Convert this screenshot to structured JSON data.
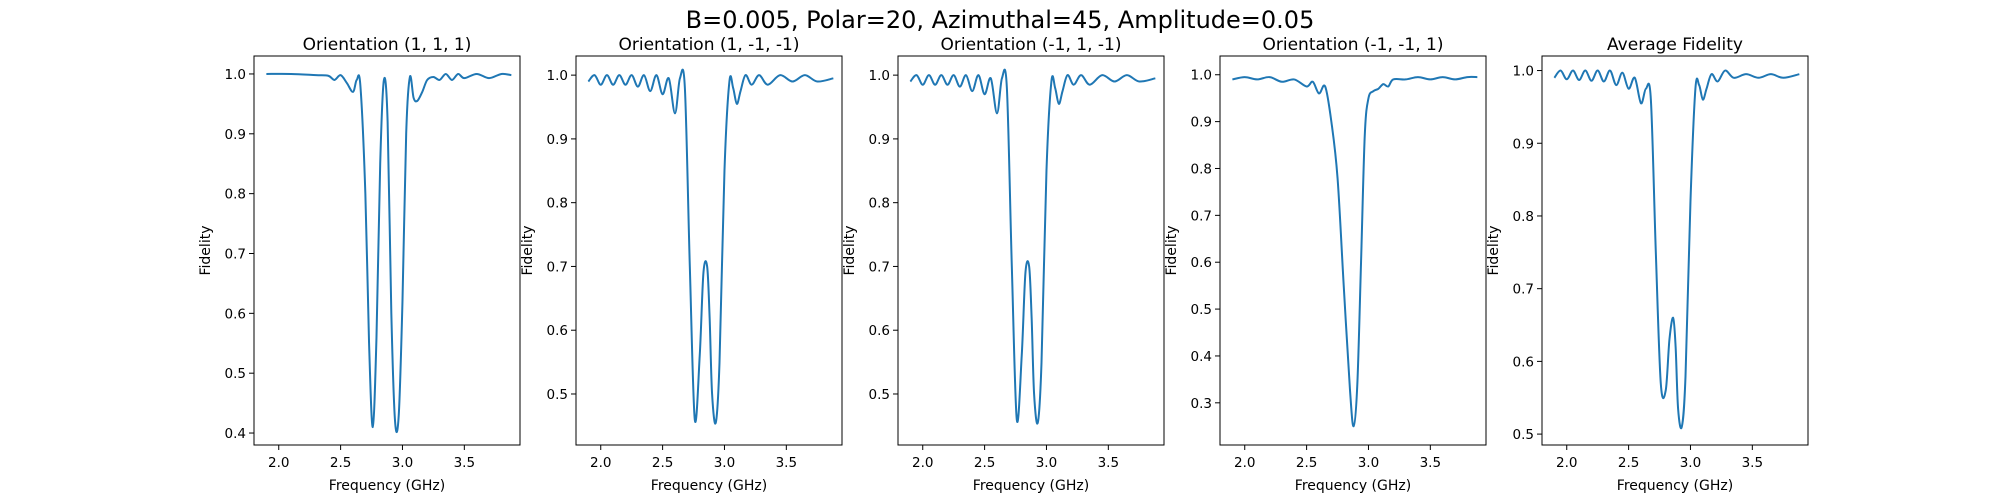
{
  "suptitle": "B=0.005, Polar=20, Azimuthal=45, Amplitude=0.05",
  "chart_data": [
    {
      "type": "line",
      "title": "Orientation (1, 1, 1)",
      "xlabel": "Frequency (GHz)",
      "ylabel": "Fidelity",
      "xlim": [
        1.8,
        3.95
      ],
      "ylim": [
        0.38,
        1.03
      ],
      "xticks": [
        2.0,
        2.5,
        3.0,
        3.5
      ],
      "xtick_labels": [
        "2.0",
        "2.5",
        "3.0",
        "3.5"
      ],
      "yticks": [
        0.4,
        0.5,
        0.6,
        0.7,
        0.8,
        0.9,
        1.0
      ],
      "ytick_labels": [
        "0.4",
        "0.5",
        "0.6",
        "0.7",
        "0.8",
        "0.9",
        "1.0"
      ],
      "series": [
        {
          "color": "#1f77b4",
          "x": [
            1.9,
            2.1,
            2.3,
            2.4,
            2.45,
            2.5,
            2.55,
            2.6,
            2.63,
            2.66,
            2.7,
            2.73,
            2.76,
            2.79,
            2.82,
            2.85,
            2.88,
            2.91,
            2.94,
            2.97,
            3.0,
            3.03,
            3.06,
            3.09,
            3.12,
            3.16,
            3.2,
            3.25,
            3.3,
            3.35,
            3.4,
            3.45,
            3.5,
            3.6,
            3.7,
            3.8,
            3.88
          ],
          "y": [
            1.0,
            1.0,
            0.998,
            0.997,
            0.99,
            0.998,
            0.985,
            0.97,
            0.99,
            0.98,
            0.8,
            0.55,
            0.41,
            0.56,
            0.85,
            0.99,
            0.92,
            0.6,
            0.42,
            0.43,
            0.62,
            0.9,
            0.995,
            0.96,
            0.955,
            0.97,
            0.99,
            0.995,
            0.99,
            1.0,
            0.99,
            1.0,
            0.993,
            1.0,
            0.993,
            1.0,
            0.998
          ]
        }
      ]
    },
    {
      "type": "line",
      "title": "Orientation (1, -1, -1)",
      "xlabel": "Frequency (GHz)",
      "ylabel": "Fidelity",
      "xlim": [
        1.8,
        3.95
      ],
      "ylim": [
        0.42,
        1.03
      ],
      "xticks": [
        2.0,
        2.5,
        3.0,
        3.5
      ],
      "xtick_labels": [
        "2.0",
        "2.5",
        "3.0",
        "3.5"
      ],
      "yticks": [
        0.5,
        0.6,
        0.7,
        0.8,
        0.9,
        1.0
      ],
      "ytick_labels": [
        "0.5",
        "0.6",
        "0.7",
        "0.8",
        "0.9",
        "1.0"
      ],
      "series": [
        {
          "color": "#1f77b4",
          "x": [
            1.9,
            1.95,
            2.0,
            2.05,
            2.1,
            2.15,
            2.2,
            2.25,
            2.3,
            2.35,
            2.4,
            2.45,
            2.5,
            2.55,
            2.6,
            2.64,
            2.68,
            2.72,
            2.76,
            2.8,
            2.83,
            2.86,
            2.88,
            2.9,
            2.93,
            2.96,
            3.0,
            3.04,
            3.07,
            3.1,
            3.13,
            3.17,
            3.22,
            3.28,
            3.35,
            3.45,
            3.55,
            3.65,
            3.75,
            3.88
          ],
          "y": [
            0.99,
            1.0,
            0.985,
            1.0,
            0.985,
            1.0,
            0.985,
            1.0,
            0.982,
            1.0,
            0.975,
            1.0,
            0.97,
            0.995,
            0.94,
            0.995,
            0.98,
            0.7,
            0.46,
            0.56,
            0.69,
            0.7,
            0.62,
            0.5,
            0.455,
            0.55,
            0.85,
            0.99,
            0.98,
            0.955,
            0.975,
            1.0,
            0.985,
            1.0,
            0.985,
            1.0,
            0.99,
            1.0,
            0.99,
            0.995
          ]
        }
      ]
    },
    {
      "type": "line",
      "title": "Orientation (-1, 1, -1)",
      "xlabel": "Frequency (GHz)",
      "ylabel": "Fidelity",
      "xlim": [
        1.8,
        3.95
      ],
      "ylim": [
        0.42,
        1.03
      ],
      "xticks": [
        2.0,
        2.5,
        3.0,
        3.5
      ],
      "xtick_labels": [
        "2.0",
        "2.5",
        "3.0",
        "3.5"
      ],
      "yticks": [
        0.5,
        0.6,
        0.7,
        0.8,
        0.9,
        1.0
      ],
      "ytick_labels": [
        "0.5",
        "0.6",
        "0.7",
        "0.8",
        "0.9",
        "1.0"
      ],
      "series": [
        {
          "color": "#1f77b4",
          "x": [
            1.9,
            1.95,
            2.0,
            2.05,
            2.1,
            2.15,
            2.2,
            2.25,
            2.3,
            2.35,
            2.4,
            2.45,
            2.5,
            2.55,
            2.6,
            2.64,
            2.68,
            2.72,
            2.76,
            2.8,
            2.83,
            2.86,
            2.88,
            2.9,
            2.93,
            2.96,
            3.0,
            3.04,
            3.07,
            3.1,
            3.13,
            3.17,
            3.22,
            3.28,
            3.35,
            3.45,
            3.55,
            3.65,
            3.75,
            3.88
          ],
          "y": [
            0.99,
            1.0,
            0.985,
            1.0,
            0.985,
            1.0,
            0.985,
            1.0,
            0.982,
            1.0,
            0.975,
            1.0,
            0.97,
            0.995,
            0.94,
            0.995,
            0.98,
            0.7,
            0.46,
            0.56,
            0.69,
            0.7,
            0.62,
            0.5,
            0.455,
            0.55,
            0.85,
            0.99,
            0.98,
            0.955,
            0.975,
            1.0,
            0.985,
            1.0,
            0.985,
            1.0,
            0.99,
            1.0,
            0.99,
            0.995
          ]
        }
      ]
    },
    {
      "type": "line",
      "title": "Orientation (-1, -1, 1)",
      "xlabel": "Frequency (GHz)",
      "ylabel": "Fidelity",
      "xlim": [
        1.8,
        3.95
      ],
      "ylim": [
        0.21,
        1.04
      ],
      "xticks": [
        2.0,
        2.5,
        3.0,
        3.5
      ],
      "xtick_labels": [
        "2.0",
        "2.5",
        "3.0",
        "3.5"
      ],
      "yticks": [
        0.3,
        0.4,
        0.5,
        0.6,
        0.7,
        0.8,
        0.9,
        1.0
      ],
      "ytick_labels": [
        "0.3",
        "0.4",
        "0.5",
        "0.6",
        "0.7",
        "0.8",
        "0.9",
        "1.0"
      ],
      "series": [
        {
          "color": "#1f77b4",
          "x": [
            1.9,
            2.0,
            2.1,
            2.2,
            2.3,
            2.4,
            2.5,
            2.55,
            2.6,
            2.65,
            2.7,
            2.75,
            2.8,
            2.85,
            2.88,
            2.91,
            2.94,
            2.97,
            3.0,
            3.04,
            3.08,
            3.12,
            3.16,
            3.2,
            3.3,
            3.4,
            3.5,
            3.6,
            3.7,
            3.8,
            3.88
          ],
          "y": [
            0.99,
            0.995,
            0.99,
            0.995,
            0.985,
            0.99,
            0.975,
            0.985,
            0.96,
            0.975,
            0.9,
            0.78,
            0.55,
            0.33,
            0.25,
            0.34,
            0.6,
            0.87,
            0.95,
            0.965,
            0.97,
            0.98,
            0.975,
            0.99,
            0.99,
            0.995,
            0.99,
            0.995,
            0.99,
            0.995,
            0.995
          ]
        }
      ]
    },
    {
      "type": "line",
      "title": "Average Fidelity",
      "xlabel": "Frequency (GHz)",
      "ylabel": "Fidelity",
      "xlim": [
        1.8,
        3.95
      ],
      "ylim": [
        0.485,
        1.02
      ],
      "xticks": [
        2.0,
        2.5,
        3.0,
        3.5
      ],
      "xtick_labels": [
        "2.0",
        "2.5",
        "3.0",
        "3.5"
      ],
      "yticks": [
        0.5,
        0.6,
        0.7,
        0.8,
        0.9,
        1.0
      ],
      "ytick_labels": [
        "0.5",
        "0.6",
        "0.7",
        "0.8",
        "0.9",
        "1.0"
      ],
      "series": [
        {
          "color": "#1f77b4",
          "x": [
            1.9,
            1.95,
            2.0,
            2.05,
            2.1,
            2.15,
            2.2,
            2.25,
            2.3,
            2.35,
            2.4,
            2.45,
            2.5,
            2.55,
            2.6,
            2.64,
            2.68,
            2.72,
            2.76,
            2.8,
            2.83,
            2.86,
            2.88,
            2.9,
            2.93,
            2.96,
            3.0,
            3.04,
            3.07,
            3.1,
            3.13,
            3.17,
            3.22,
            3.28,
            3.35,
            3.45,
            3.55,
            3.65,
            3.75,
            3.88
          ],
          "y": [
            0.99,
            1.0,
            0.988,
            1.0,
            0.987,
            1.0,
            0.986,
            1.0,
            0.985,
            1.0,
            0.98,
            0.997,
            0.975,
            0.99,
            0.955,
            0.975,
            0.96,
            0.75,
            0.57,
            0.56,
            0.63,
            0.66,
            0.62,
            0.535,
            0.51,
            0.58,
            0.82,
            0.975,
            0.98,
            0.96,
            0.975,
            0.995,
            0.985,
            1.0,
            0.99,
            0.995,
            0.99,
            0.995,
            0.99,
            0.995
          ]
        }
      ]
    }
  ]
}
